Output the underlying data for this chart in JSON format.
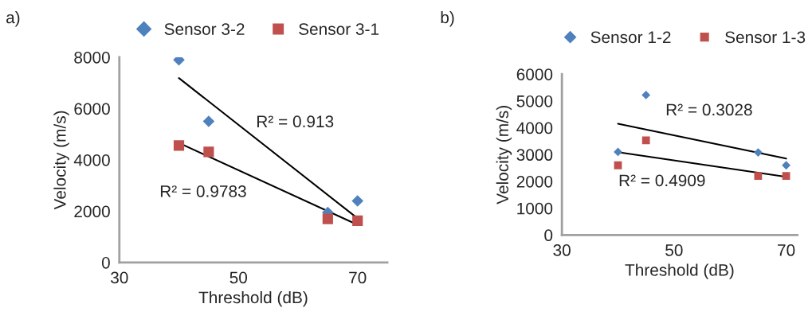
{
  "chart_data": [
    {
      "type": "scatter",
      "title": "a)",
      "xlabel": "Threshold (dB)",
      "ylabel": "Velocity (m/s)",
      "xlim": [
        30,
        75
      ],
      "xticks": [
        30,
        50,
        70
      ],
      "ylim": [
        0,
        8000
      ],
      "yticks": [
        0,
        2000,
        4000,
        6000,
        8000
      ],
      "legend": "top",
      "grid": false,
      "series": [
        {
          "name": "Sensor 3-2",
          "color": "#4f81bd",
          "marker": "diamond",
          "x": [
            40,
            45,
            65,
            70
          ],
          "values": [
            7900,
            5500,
            1950,
            2400
          ]
        },
        {
          "name": "Sensor 3-1",
          "color": "#c0504d",
          "marker": "square",
          "x": [
            40,
            45,
            65,
            70
          ],
          "values": [
            4560,
            4310,
            1700,
            1630
          ]
        },
        {
          "type": "line",
          "color": "#000000",
          "x": [
            40,
            70
          ],
          "values": [
            7190,
            1720
          ]
        },
        {
          "type": "line",
          "color": "#000000",
          "x": [
            40,
            70
          ],
          "values": [
            4660,
            1470
          ]
        }
      ],
      "annotations": [
        "R² = 0.913",
        "R² = 0.9783"
      ]
    },
    {
      "type": "scatter",
      "title": "b)",
      "xlabel": "Threshold (dB)",
      "ylabel": "Velocity (m/s)",
      "xlim": [
        30,
        72
      ],
      "xticks": [
        30,
        50,
        70
      ],
      "ylim": [
        0,
        6000
      ],
      "yticks": [
        0,
        1000,
        2000,
        3000,
        4000,
        5000,
        6000
      ],
      "legend": "top",
      "grid": false,
      "series": [
        {
          "name": "Sensor 1-2",
          "color": "#4f81bd",
          "marker": "diamond",
          "x": [
            40,
            45,
            65,
            70
          ],
          "values": [
            3100,
            5220,
            3080,
            2600
          ]
        },
        {
          "name": "Sensor 1-3",
          "color": "#c0504d",
          "marker": "square",
          "x": [
            40,
            45,
            65,
            70
          ],
          "values": [
            2600,
            3530,
            2200,
            2200
          ]
        },
        {
          "type": "line",
          "color": "#000000",
          "x": [
            40,
            70
          ],
          "values": [
            4150,
            2850
          ]
        },
        {
          "type": "line",
          "color": "#000000",
          "x": [
            40,
            70
          ],
          "values": [
            3090,
            2170
          ]
        }
      ],
      "annotations": [
        "R² = 0.3028",
        "R² = 0.4909"
      ]
    }
  ]
}
